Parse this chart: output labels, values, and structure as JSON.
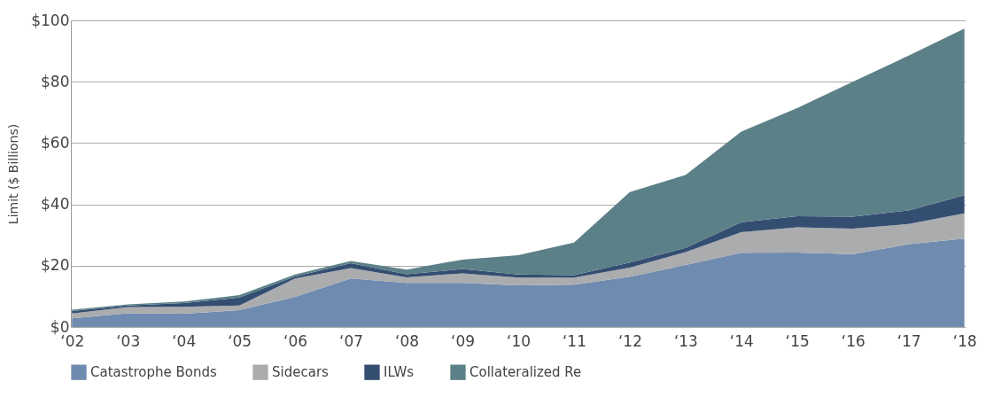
{
  "chart_data": {
    "type": "area",
    "stacked": true,
    "ylabel": "Limit ($ Billions)",
    "categories": [
      "‘02",
      "‘03",
      "‘04",
      "‘05",
      "‘06",
      "‘07",
      "‘08",
      "‘09",
      "‘10",
      "‘11",
      "‘12",
      "‘13",
      "‘14",
      "‘15",
      "‘16",
      "‘17",
      "‘18"
    ],
    "series": [
      {
        "name": "Catastrophe Bonds",
        "color": "#6f8bb0",
        "values": [
          2.8,
          4.5,
          4.3,
          5.5,
          9.8,
          15.8,
          14.4,
          14.4,
          13.6,
          13.8,
          16.4,
          20.2,
          24.2,
          24.3,
          23.8,
          27,
          28.8
        ]
      },
      {
        "name": "Sidecars",
        "color": "#abacae",
        "values": [
          1.6,
          2.0,
          2.3,
          1.5,
          6.0,
          3.4,
          1.8,
          3.1,
          2.5,
          2.3,
          3.0,
          4.2,
          6.7,
          8.2,
          8.3,
          6.6,
          8.3
        ]
      },
      {
        "name": "ILWs",
        "color": "#344e72",
        "values": [
          0.8,
          0.5,
          1.2,
          2.6,
          0.7,
          1.6,
          1.0,
          1.4,
          1.0,
          0.8,
          1.6,
          1.4,
          3.3,
          3.6,
          3.9,
          4.4,
          5.9
        ]
      },
      {
        "name": "Collateralized Re",
        "color": "#5c8087",
        "values": [
          0.4,
          0.4,
          0.5,
          0.8,
          0.6,
          0.7,
          1.5,
          3.1,
          6.3,
          10.6,
          23,
          23.8,
          29.5,
          35.3,
          44,
          50.5,
          54.3
        ]
      }
    ],
    "ylim": [
      0,
      100
    ],
    "yticks": [
      {
        "value": 0,
        "label": "$0"
      },
      {
        "value": 20,
        "label": "$20"
      },
      {
        "value": 40,
        "label": "$40"
      },
      {
        "value": 60,
        "label": "$60"
      },
      {
        "value": 80,
        "label": "$80"
      },
      {
        "value": 100,
        "label": "$100"
      }
    ],
    "grid": "y",
    "legend": "bottom"
  }
}
